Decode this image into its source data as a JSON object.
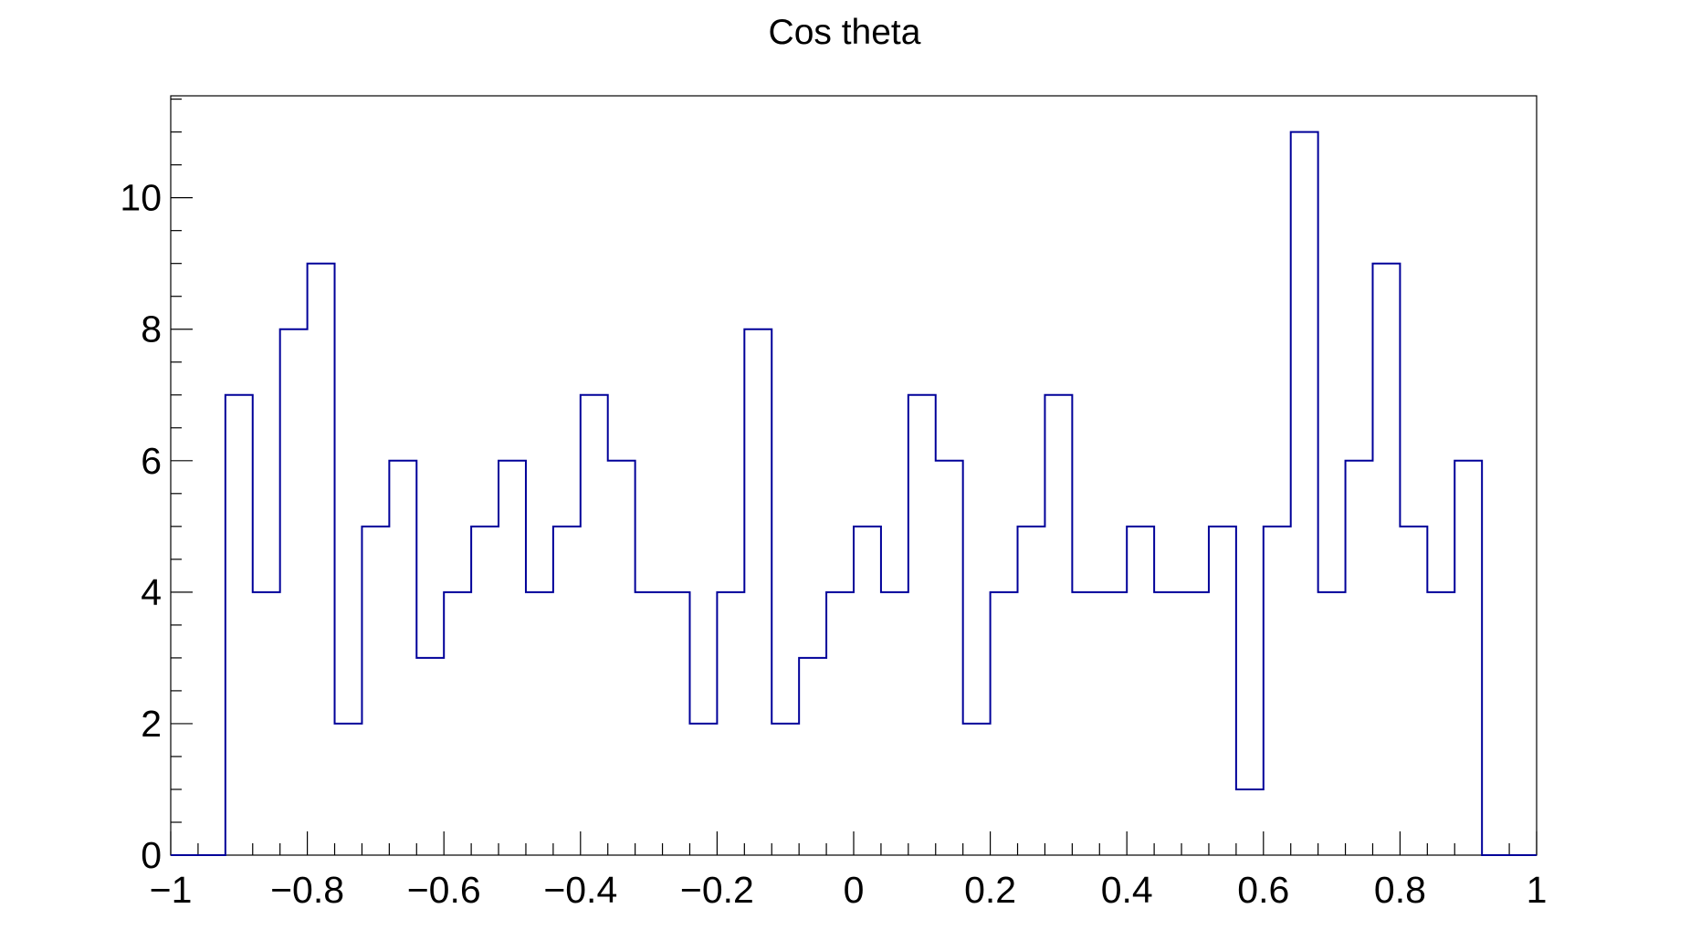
{
  "chart_data": {
    "type": "bar",
    "style": "step-histogram",
    "title": "Cos theta",
    "xlabel": "",
    "ylabel": "",
    "xlim": [
      -1,
      1
    ],
    "ylim": [
      0,
      11.55
    ],
    "grid": false,
    "legend": "none",
    "bin_edges": [
      -1,
      -0.96,
      -0.92,
      -0.88,
      -0.84,
      -0.8,
      -0.76,
      -0.72,
      -0.68,
      -0.64,
      -0.6,
      -0.56,
      -0.52,
      -0.48,
      -0.44,
      -0.4,
      -0.36,
      -0.32,
      -0.28,
      -0.24,
      -0.2,
      -0.16,
      -0.12,
      -0.08,
      -0.04,
      0,
      0.04,
      0.08,
      0.12,
      0.16,
      0.2,
      0.24,
      0.28,
      0.32,
      0.36,
      0.4,
      0.44,
      0.48,
      0.52,
      0.56,
      0.6,
      0.64,
      0.68,
      0.72,
      0.76,
      0.8,
      0.84,
      0.88,
      0.92,
      0.96,
      1
    ],
    "values": [
      0,
      0,
      7,
      4,
      8,
      9,
      2,
      5,
      6,
      3,
      4,
      5,
      6,
      4,
      5,
      7,
      6,
      4,
      4,
      2,
      4,
      8,
      2,
      3,
      4,
      5,
      4,
      7,
      6,
      2,
      4,
      5,
      7,
      4,
      4,
      5,
      4,
      4,
      5,
      1,
      5,
      11,
      4,
      6,
      9,
      5,
      4,
      6,
      0,
      0
    ],
    "x_ticks": [
      -1,
      -0.8,
      -0.6,
      -0.4,
      -0.2,
      0,
      0.2,
      0.4,
      0.6,
      0.8,
      1
    ],
    "x_tick_labels": [
      "−1",
      "−0.8",
      "−0.6",
      "−0.4",
      "−0.2",
      "0",
      "0.2",
      "0.4",
      "0.6",
      "0.8",
      "1"
    ],
    "y_ticks": [
      0,
      2,
      4,
      6,
      8,
      10
    ],
    "y_tick_labels": [
      "0",
      "2",
      "4",
      "6",
      "8",
      "10"
    ],
    "line_color": "#000099",
    "axis_color": "#000000"
  }
}
